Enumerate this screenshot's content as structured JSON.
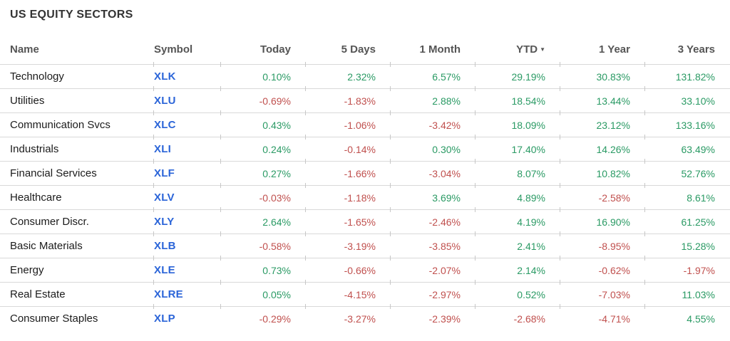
{
  "title": "US EQUITY SECTORS",
  "table": {
    "sort_icon": "▼",
    "sorted_column": "YTD",
    "sort_direction": "desc",
    "columns": [
      {
        "key": "name",
        "label": "Name",
        "align": "left"
      },
      {
        "key": "symbol",
        "label": "Symbol",
        "align": "left"
      },
      {
        "key": "today",
        "label": "Today",
        "align": "right"
      },
      {
        "key": "five-days",
        "label": "5 Days",
        "align": "right"
      },
      {
        "key": "one-month",
        "label": "1 Month",
        "align": "right"
      },
      {
        "key": "ytd",
        "label": "YTD",
        "align": "right",
        "sorted": true
      },
      {
        "key": "one-year",
        "label": "1 Year",
        "align": "right"
      },
      {
        "key": "three-years",
        "label": "3 Years",
        "align": "right"
      }
    ],
    "rows": [
      {
        "name": "Technology",
        "symbol": "XLK",
        "values": [
          "0.10%",
          "2.32%",
          "6.57%",
          "29.19%",
          "30.83%",
          "131.82%"
        ]
      },
      {
        "name": "Utilities",
        "symbol": "XLU",
        "values": [
          "-0.69%",
          "-1.83%",
          "2.88%",
          "18.54%",
          "13.44%",
          "33.10%"
        ]
      },
      {
        "name": "Communication Svcs",
        "symbol": "XLC",
        "values": [
          "0.43%",
          "-1.06%",
          "-3.42%",
          "18.09%",
          "23.12%",
          "133.16%"
        ]
      },
      {
        "name": "Industrials",
        "symbol": "XLI",
        "values": [
          "0.24%",
          "-0.14%",
          "0.30%",
          "17.40%",
          "14.26%",
          "63.49%"
        ]
      },
      {
        "name": "Financial Services",
        "symbol": "XLF",
        "values": [
          "0.27%",
          "-1.66%",
          "-3.04%",
          "8.07%",
          "10.82%",
          "52.76%"
        ]
      },
      {
        "name": "Healthcare",
        "symbol": "XLV",
        "values": [
          "-0.03%",
          "-1.18%",
          "3.69%",
          "4.89%",
          "-2.58%",
          "8.61%"
        ]
      },
      {
        "name": "Consumer Discr.",
        "symbol": "XLY",
        "values": [
          "2.64%",
          "-1.65%",
          "-2.46%",
          "4.19%",
          "16.90%",
          "61.25%"
        ]
      },
      {
        "name": "Basic Materials",
        "symbol": "XLB",
        "values": [
          "-0.58%",
          "-3.19%",
          "-3.85%",
          "2.41%",
          "-8.95%",
          "15.28%"
        ]
      },
      {
        "name": "Energy",
        "symbol": "XLE",
        "values": [
          "0.73%",
          "-0.66%",
          "-2.07%",
          "2.14%",
          "-0.62%",
          "-1.97%"
        ]
      },
      {
        "name": "Real Estate",
        "symbol": "XLRE",
        "values": [
          "0.05%",
          "-4.15%",
          "-2.97%",
          "0.52%",
          "-7.03%",
          "11.03%"
        ]
      },
      {
        "name": "Consumer Staples",
        "symbol": "XLP",
        "values": [
          "-0.29%",
          "-3.27%",
          "-2.39%",
          "-2.68%",
          "-4.71%",
          "4.55%"
        ]
      }
    ]
  },
  "colors": {
    "positive": "#2a9a64",
    "negative": "#c0504e",
    "symbol_link": "#2a64d8",
    "header_text": "#555555",
    "title_text": "#333333",
    "row_divider": "#d9d9d9"
  }
}
